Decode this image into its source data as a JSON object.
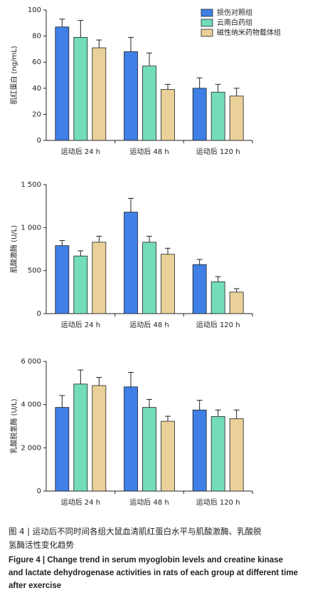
{
  "chart_data": [
    {
      "type": "bar",
      "ylabel": "肌红蛋白 (ng/mL)",
      "categories": [
        "运动后 24 h",
        "运动后 48 h",
        "运动后 120 h"
      ],
      "series": [
        {
          "name": "损伤对照组",
          "color": "#3f7fe6",
          "values": [
            87,
            68,
            40
          ],
          "errors": [
            6,
            11,
            8
          ]
        },
        {
          "name": "云南白药组",
          "color": "#72dcbb",
          "values": [
            79,
            57,
            37
          ],
          "errors": [
            13,
            10,
            6
          ]
        },
        {
          "name": "磁性纳米药物载体组",
          "color": "#ead099",
          "values": [
            71,
            39,
            34
          ],
          "errors": [
            6,
            4,
            6
          ]
        }
      ],
      "ylim": [
        0,
        100
      ],
      "yticks": [
        0,
        20,
        40,
        60,
        80,
        100
      ],
      "legend": "upper right"
    },
    {
      "type": "bar",
      "ylabel": "肌酸激酶 (U/L)",
      "categories": [
        "运动后 24 h",
        "运动后 48 h",
        "运动后 120 h"
      ],
      "series": [
        {
          "name": "损伤对照组",
          "color": "#3f7fe6",
          "values": [
            790,
            1180,
            570
          ],
          "errors": [
            60,
            160,
            60
          ]
        },
        {
          "name": "云南白药组",
          "color": "#72dcbb",
          "values": [
            670,
            830,
            370
          ],
          "errors": [
            60,
            70,
            60
          ]
        },
        {
          "name": "磁性纳米药物载体组",
          "color": "#ead099",
          "values": [
            830,
            690,
            250
          ],
          "errors": [
            70,
            70,
            40
          ]
        }
      ],
      "ylim": [
        0,
        1500
      ],
      "yticks": [
        0,
        500,
        {
          "value": 1000,
          "label": "1 000"
        },
        {
          "value": 1500,
          "label": "1 500"
        }
      ],
      "legend": "none"
    },
    {
      "type": "bar",
      "ylabel": "乳酸脱氢酶 (U/L)",
      "categories": [
        "运动后 24 h",
        "运动后 48 h",
        "运动后 120 h"
      ],
      "series": [
        {
          "name": "损伤对照组",
          "color": "#3f7fe6",
          "values": [
            3870,
            4820,
            3750
          ],
          "errors": [
            550,
            670,
            450
          ]
        },
        {
          "name": "云南白药组",
          "color": "#72dcbb",
          "values": [
            4950,
            3870,
            3450
          ],
          "errors": [
            650,
            370,
            300
          ]
        },
        {
          "name": "磁性纳米药物载体组",
          "color": "#ead099",
          "values": [
            4880,
            3230,
            3350
          ],
          "errors": [
            380,
            230,
            400
          ]
        }
      ],
      "ylim": [
        0,
        6000
      ],
      "yticks": [
        0,
        {
          "value": 2000,
          "label": "2 000"
        },
        {
          "value": 4000,
          "label": "4 000"
        },
        {
          "value": 6000,
          "label": "6 000"
        }
      ],
      "legend": "none"
    }
  ],
  "caption": {
    "zh": [
      "图 4 | 运动后不同时间各组大鼠血清肌红蛋白水平与肌酸激酶、乳酸脱",
      "氢酶活性变化趋势"
    ],
    "en": [
      "Figure 4 | Change trend in serum myoglobin levels and creatine kinase",
      "and lactate dehydrogenase activities in rats of each group at different time",
      "after exercise"
    ]
  }
}
